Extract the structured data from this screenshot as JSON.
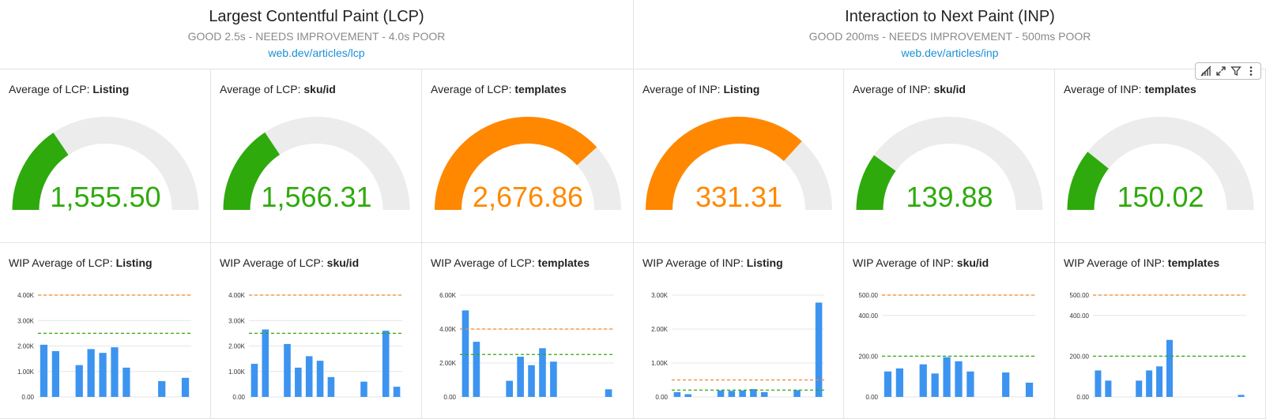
{
  "headers": {
    "lcp": {
      "title": "Largest Contentful Paint (LCP)",
      "thresholds": "GOOD 2.5s - NEEDS IMPROVEMENT - 4.0s POOR",
      "link": "web.dev/articles/lcp"
    },
    "inp": {
      "title": "Interaction to Next Paint (INP)",
      "thresholds": "GOOD 200ms - NEEDS IMPROVEMENT - 500ms POOR",
      "link": "web.dev/articles/inp"
    }
  },
  "colors": {
    "good": "#2eaa0c",
    "needs_improvement": "#ff8800",
    "track": "#ececec",
    "bar": "#3d94f0",
    "poor_line": "#f0882a",
    "good_line": "#2eaa0c"
  },
  "toolbar": {
    "icons": [
      "chart-icon",
      "expand-icon",
      "filter-icon",
      "more-icon"
    ]
  },
  "gauges": [
    {
      "prefix": "Average of LCP: ",
      "page": "Listing",
      "display": "1,555.50",
      "value": 1555.5,
      "max": 5000,
      "status": "good"
    },
    {
      "prefix": "Average of LCP: ",
      "page": "sku/id",
      "display": "1,566.31",
      "value": 1566.31,
      "max": 5000,
      "status": "good"
    },
    {
      "prefix": "Average of LCP: ",
      "page": "templates",
      "display": "2,676.86",
      "value": 2676.86,
      "max": 3500,
      "status": "needs_improvement"
    },
    {
      "prefix": "Average of INP: ",
      "page": "Listing",
      "display": "331.31",
      "value": 331.31,
      "max": 450,
      "status": "needs_improvement"
    },
    {
      "prefix": "Average of INP: ",
      "page": "sku/id",
      "display": "139.88",
      "value": 139.88,
      "max": 700,
      "status": "good"
    },
    {
      "prefix": "Average of INP: ",
      "page": "templates",
      "display": "150.02",
      "value": 150.02,
      "max": 700,
      "status": "good"
    }
  ],
  "chart_data": [
    {
      "type": "bar",
      "title_prefix": "WIP Average of LCP: ",
      "title_page": "Listing",
      "ylim": [
        0,
        4000
      ],
      "yticks": [
        0,
        1000,
        2000,
        3000,
        4000
      ],
      "ytick_labels": [
        "0.00",
        "1.00K",
        "2.00K",
        "3.00K",
        "4.00K"
      ],
      "thresholds": [
        2500,
        4000
      ],
      "values": [
        2050,
        1800,
        0,
        1250,
        1880,
        1730,
        1950,
        1150,
        0,
        0,
        620,
        0,
        750
      ]
    },
    {
      "type": "bar",
      "title_prefix": "WIP Average of LCP: ",
      "title_page": "sku/id",
      "ylim": [
        0,
        4000
      ],
      "yticks": [
        0,
        1000,
        2000,
        3000,
        4000
      ],
      "ytick_labels": [
        "0.00",
        "1.00K",
        "2.00K",
        "3.00K",
        "4.00K"
      ],
      "thresholds": [
        2500,
        4000
      ],
      "values": [
        1300,
        2650,
        0,
        2080,
        1150,
        1600,
        1420,
        780,
        0,
        0,
        600,
        0,
        2600,
        400
      ]
    },
    {
      "type": "bar",
      "title_prefix": "WIP Average of LCP: ",
      "title_page": "templates",
      "ylim": [
        0,
        6000
      ],
      "yticks": [
        0,
        2000,
        4000,
        6000
      ],
      "ytick_labels": [
        "0.00",
        "2.00K",
        "4.00K",
        "6.00K"
      ],
      "thresholds": [
        2500,
        4000
      ],
      "values": [
        5100,
        3250,
        0,
        0,
        950,
        2370,
        1870,
        2870,
        2080,
        0,
        0,
        0,
        0,
        450
      ]
    },
    {
      "type": "bar",
      "title_prefix": "WIP Average of INP: ",
      "title_page": "Listing",
      "ylim": [
        0,
        3000
      ],
      "yticks": [
        0,
        1000,
        2000,
        3000
      ],
      "ytick_labels": [
        "0.00",
        "1.00K",
        "2.00K",
        "3.00K"
      ],
      "thresholds": [
        200,
        500
      ],
      "values": [
        140,
        80,
        0,
        0,
        190,
        180,
        190,
        230,
        140,
        0,
        0,
        200,
        0,
        2780
      ]
    },
    {
      "type": "bar",
      "title_prefix": "WIP Average of INP: ",
      "title_page": "sku/id",
      "ylim": [
        0,
        500
      ],
      "yticks": [
        0,
        200,
        400,
        500
      ],
      "ytick_labels": [
        "0.00",
        "200.00",
        "400.00",
        "500.00"
      ],
      "thresholds": [
        200,
        500
      ],
      "values": [
        125,
        140,
        0,
        160,
        115,
        195,
        175,
        125,
        0,
        0,
        120,
        0,
        70
      ]
    },
    {
      "type": "bar",
      "title_prefix": "WIP Average of INP: ",
      "title_page": "templates",
      "ylim": [
        0,
        500
      ],
      "yticks": [
        0,
        200,
        400,
        500
      ],
      "ytick_labels": [
        "0.00",
        "200.00",
        "400.00",
        "500.00"
      ],
      "thresholds": [
        200,
        500
      ],
      "values": [
        130,
        80,
        0,
        0,
        80,
        130,
        150,
        280,
        0,
        0,
        0,
        0,
        0,
        0,
        10
      ]
    }
  ]
}
